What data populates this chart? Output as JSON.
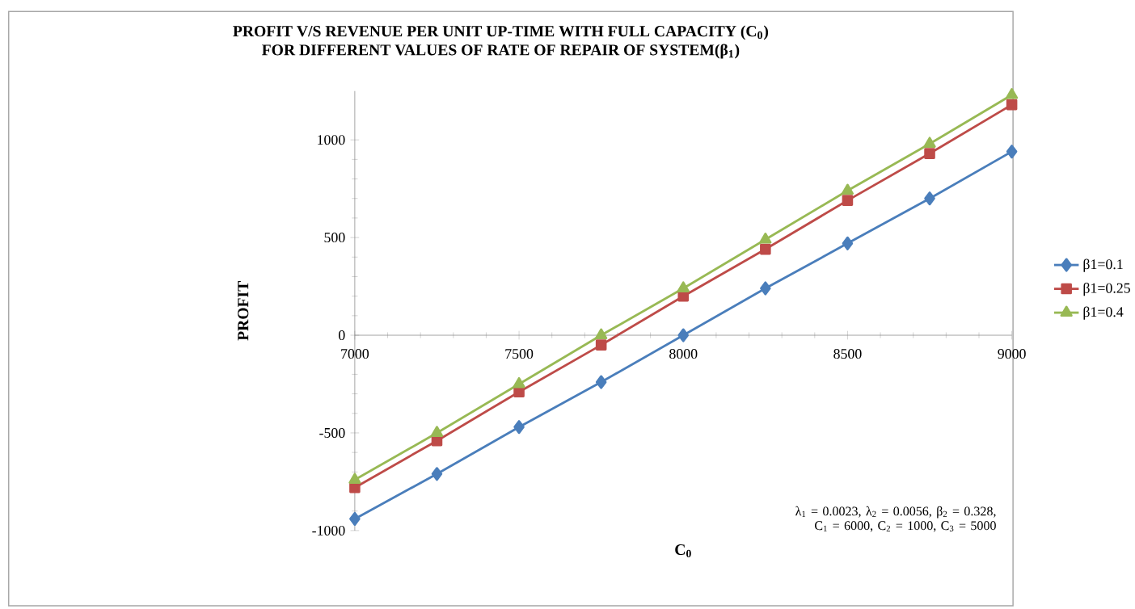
{
  "chart_data": {
    "type": "line",
    "title": "PROFIT V/S REVENUE PER UNIT UP-TIME WITH FULL CAPACITY (C$_{0}$)",
    "subtitle": "FOR DIFFERENT VALUES OF RATE OF REPAIR OF SYSTEM(β$_{1}$)",
    "xlabel": "C$_{0}$",
    "ylabel": "PROFIT",
    "x": [
      7000,
      7250,
      7500,
      7750,
      8000,
      8250,
      8500,
      8750,
      9000
    ],
    "series": [
      {
        "name": "β1=0.1",
        "color": "#4a7ebb",
        "marker": "diamond",
        "values": [
          -940,
          -710,
          -470,
          -240,
          0,
          240,
          470,
          700,
          940
        ]
      },
      {
        "name": "β1=0.25",
        "color": "#be4b48",
        "marker": "square",
        "values": [
          -780,
          -540,
          -290,
          -50,
          200,
          440,
          690,
          930,
          1180
        ]
      },
      {
        "name": "β1=0.4",
        "color": "#98b954",
        "marker": "triangle",
        "values": [
          -740,
          -500,
          -250,
          0,
          240,
          490,
          740,
          980,
          1230
        ]
      }
    ],
    "xlim": [
      7000,
      9000
    ],
    "xticks": [
      7000,
      7500,
      8000,
      8500,
      9000
    ],
    "ylim": [
      -1000,
      1250
    ],
    "yticks": [
      -1000,
      -500,
      0,
      500,
      1000
    ],
    "grid": false,
    "legend": "right",
    "line_style": "solid",
    "annotations": [
      "λ$_{1}$ = 0.0023, λ$_{2}$ = 0.0056, β$_{2}$ = 0.328, C$_{1}$ = 6000, C$_{2}$ = 1000, C$_{3}$ = 5000"
    ]
  }
}
